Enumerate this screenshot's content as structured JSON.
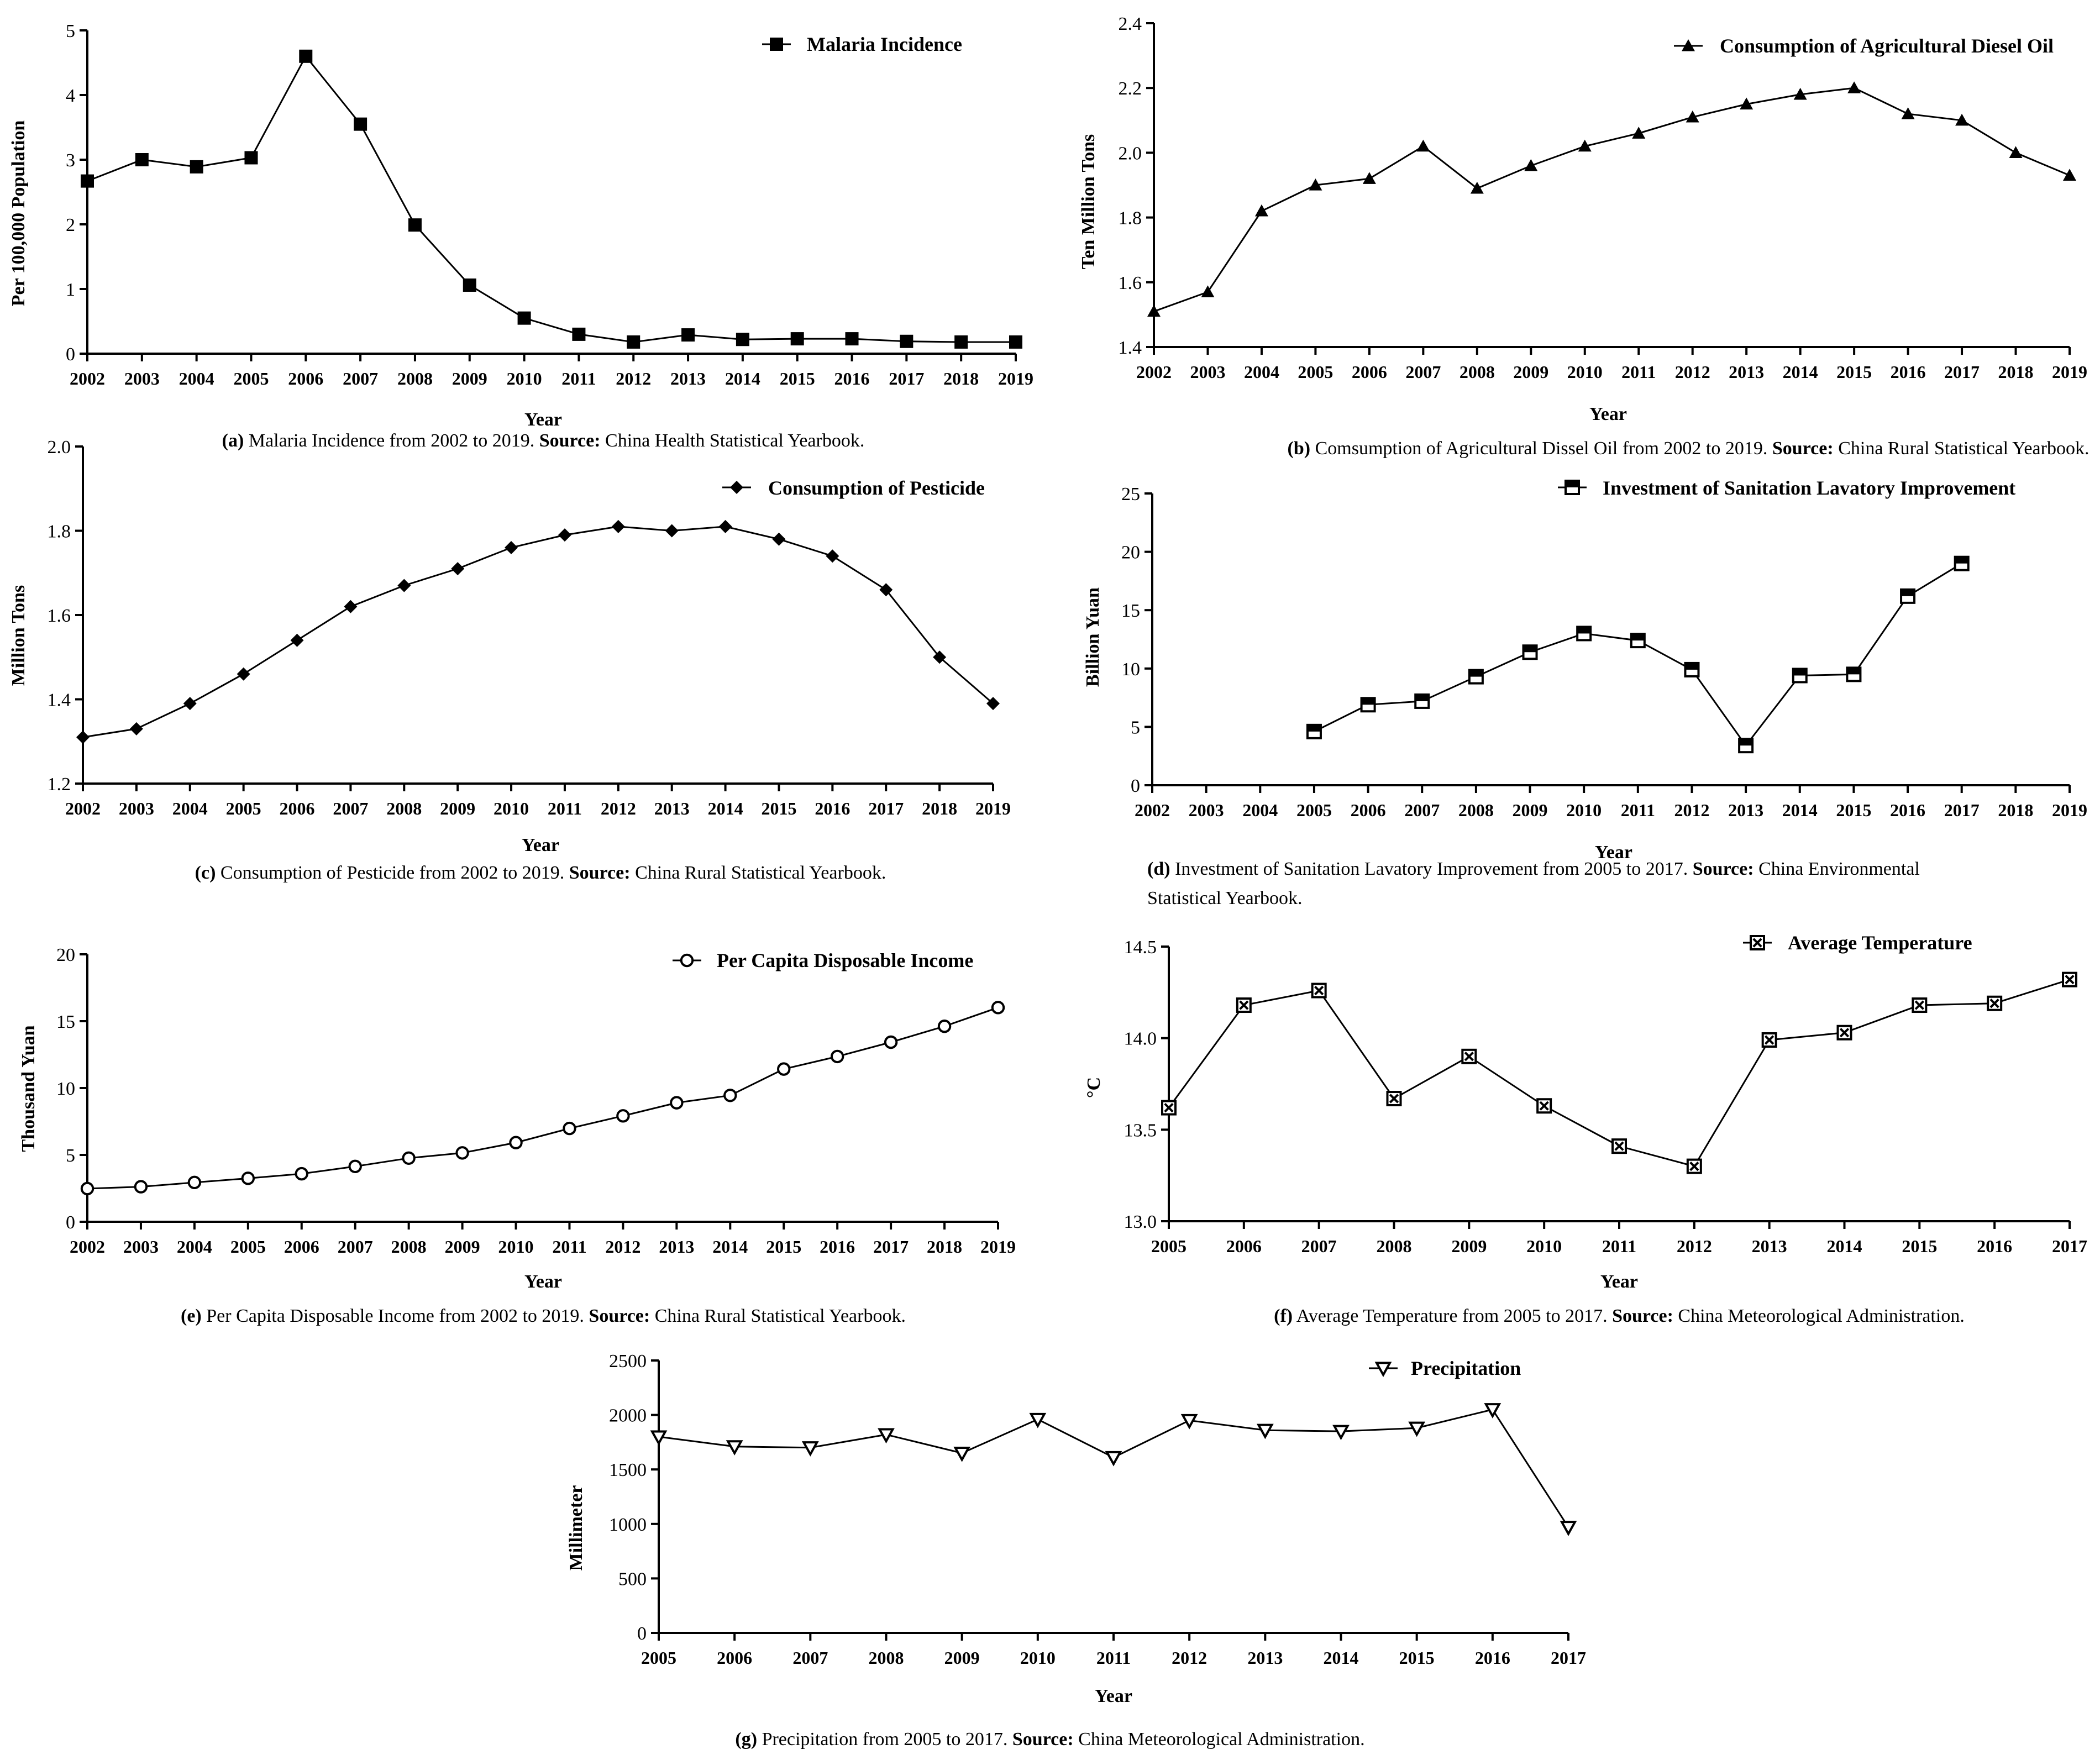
{
  "figure": {
    "panels": [
      {
        "id": "a",
        "letter": "(a)",
        "caption_text": " Malaria Incidence from 2002 to 2019. ",
        "source_label": "Source:",
        "source_text": " China Health Statistical Yearbook."
      },
      {
        "id": "b",
        "letter": "(b)",
        "caption_text": " Comsumption of Agricultural Dissel Oil from 2002 to 2019. ",
        "source_label": "Source:",
        "source_text": " China Rural Statistical Yearbook."
      },
      {
        "id": "c",
        "letter": "(c)",
        "caption_text": " Consumption of Pesticide from 2002 to 2019. ",
        "source_label": "Source:",
        "source_text": " China Rural Statistical Yearbook."
      },
      {
        "id": "d",
        "letter": "(d)",
        "caption_text": " Investment of Sanitation Lavatory Improvement from 2005 to 2017. ",
        "source_label": "Source:",
        "source_text": " China Environmental",
        "caption_line2": "Statistical Yearbook."
      },
      {
        "id": "e",
        "letter": "(e)",
        "caption_text": " Per Capita Disposable Income from 2002 to 2019. ",
        "source_label": "Source:",
        "source_text": " China Rural Statistical Yearbook."
      },
      {
        "id": "f",
        "letter": "(f)",
        "caption_text": " Average Temperature from 2005 to 2017. ",
        "source_label": "Source:",
        "source_text": " China Meteorological Administration."
      },
      {
        "id": "g",
        "letter": "(g)",
        "caption_text": " Precipitation from 2005 to 2017. ",
        "source_label": "Source:",
        "source_text": " China Meteorological Administration."
      }
    ]
  },
  "chart_data": [
    {
      "id": "a",
      "type": "line",
      "marker": "square-filled",
      "title": "",
      "xlabel": "Year",
      "ylabel": "Per 100,000 Population",
      "legend": "Malaria Incidence",
      "legend_position": "top-right",
      "categories": [
        "2002",
        "2003",
        "2004",
        "2005",
        "2006",
        "2007",
        "2008",
        "2009",
        "2010",
        "2011",
        "2012",
        "2013",
        "2014",
        "2015",
        "2016",
        "2017",
        "2018",
        "2019"
      ],
      "values": [
        2.67,
        3.0,
        2.89,
        3.03,
        4.6,
        3.55,
        1.99,
        1.06,
        0.55,
        0.3,
        0.18,
        0.29,
        0.22,
        0.23,
        0.23,
        0.19,
        0.18,
        0.18
      ],
      "ylim": [
        0,
        5
      ],
      "yticks": [
        "0",
        "1",
        "2",
        "3",
        "4",
        "5"
      ]
    },
    {
      "id": "b",
      "type": "line",
      "marker": "triangle-filled",
      "title": "",
      "xlabel": "Year",
      "ylabel": "Ten Million Tons",
      "legend": "Consumption of Agricultural Diesel Oil",
      "legend_position": "top-right",
      "categories": [
        "2002",
        "2003",
        "2004",
        "2005",
        "2006",
        "2007",
        "2008",
        "2009",
        "2010",
        "2011",
        "2012",
        "2013",
        "2014",
        "2015",
        "2016",
        "2017",
        "2018",
        "2019"
      ],
      "values": [
        1.51,
        1.57,
        1.82,
        1.9,
        1.92,
        2.02,
        1.89,
        1.96,
        2.02,
        2.06,
        2.11,
        2.15,
        2.18,
        2.2,
        2.12,
        2.1,
        2.0,
        1.93
      ],
      "ylim": [
        1.4,
        2.4
      ],
      "yticks": [
        "1.4",
        "1.6",
        "1.8",
        "2.0",
        "2.2",
        "2.4"
      ]
    },
    {
      "id": "c",
      "type": "line",
      "marker": "diamond-filled",
      "title": "",
      "xlabel": "Year",
      "ylabel": "Million Tons",
      "legend": "Consumption of Pesticide",
      "legend_position": "top-right",
      "categories": [
        "2002",
        "2003",
        "2004",
        "2005",
        "2006",
        "2007",
        "2008",
        "2009",
        "2010",
        "2011",
        "2012",
        "2013",
        "2014",
        "2015",
        "2016",
        "2017",
        "2018",
        "2019"
      ],
      "values": [
        1.31,
        1.33,
        1.39,
        1.46,
        1.54,
        1.62,
        1.67,
        1.71,
        1.76,
        1.79,
        1.81,
        1.8,
        1.81,
        1.78,
        1.74,
        1.66,
        1.5,
        1.39
      ],
      "ylim": [
        1.2,
        2.0
      ],
      "yticks": [
        "1.2",
        "1.4",
        "1.6",
        "1.8",
        "2.0"
      ]
    },
    {
      "id": "d",
      "type": "line",
      "marker": "square-half",
      "title": "",
      "xlabel": "Year",
      "ylabel": "Billion Yuan",
      "legend": "Investment of Sanitation Lavatory Improvement",
      "legend_position": "top-right",
      "categories": [
        "2002",
        "2003",
        "2004",
        "2005",
        "2006",
        "2007",
        "2008",
        "2009",
        "2010",
        "2011",
        "2012",
        "2013",
        "2014",
        "2015",
        "2016",
        "2017",
        "2018",
        "2019"
      ],
      "values": [
        null,
        null,
        null,
        4.6,
        6.9,
        7.2,
        9.3,
        11.4,
        13.0,
        12.4,
        9.9,
        3.4,
        9.4,
        9.5,
        16.2,
        19.0,
        null,
        null
      ],
      "ylim": [
        0,
        25
      ],
      "yticks": [
        "0",
        "5",
        "10",
        "15",
        "20",
        "25"
      ]
    },
    {
      "id": "e",
      "type": "line",
      "marker": "circle-open",
      "title": "",
      "xlabel": "Year",
      "ylabel": "Thousand Yuan",
      "legend": "Per Capita Disposable Income",
      "legend_position": "top-right",
      "categories": [
        "2002",
        "2003",
        "2004",
        "2005",
        "2006",
        "2007",
        "2008",
        "2009",
        "2010",
        "2011",
        "2012",
        "2013",
        "2014",
        "2015",
        "2016",
        "2017",
        "2018",
        "2019"
      ],
      "values": [
        2.48,
        2.62,
        2.94,
        3.25,
        3.59,
        4.14,
        4.76,
        5.15,
        5.92,
        6.98,
        7.92,
        8.9,
        9.45,
        11.42,
        12.36,
        13.43,
        14.62,
        16.02
      ],
      "ylim": [
        0,
        20
      ],
      "yticks": [
        "0",
        "5",
        "10",
        "15",
        "20"
      ]
    },
    {
      "id": "f",
      "type": "line",
      "marker": "square-x",
      "title": "",
      "xlabel": "Year",
      "ylabel": "°C",
      "legend": "Average Temperature",
      "legend_position": "top-right",
      "categories": [
        "2005",
        "2006",
        "2007",
        "2008",
        "2009",
        "2010",
        "2011",
        "2012",
        "2013",
        "2014",
        "2015",
        "2016",
        "2017"
      ],
      "values": [
        13.62,
        14.18,
        14.26,
        13.67,
        13.9,
        13.63,
        13.41,
        13.3,
        13.99,
        14.03,
        14.18,
        14.19,
        14.32
      ],
      "ylim": [
        13.0,
        14.5
      ],
      "yticks": [
        "13.0",
        "13.5",
        "14.0",
        "14.5"
      ]
    },
    {
      "id": "g",
      "type": "line",
      "marker": "triangle-down-open",
      "title": "",
      "xlabel": "Year",
      "ylabel": "Millimeter",
      "legend": "Precipitation",
      "legend_position": "top-right",
      "categories": [
        "2005",
        "2006",
        "2007",
        "2008",
        "2009",
        "2010",
        "2011",
        "2012",
        "2013",
        "2014",
        "2015",
        "2016",
        "2017"
      ],
      "values": [
        1800,
        1710,
        1700,
        1820,
        1650,
        1960,
        1610,
        1950,
        1860,
        1850,
        1880,
        2050,
        970
      ],
      "ylim": [
        0,
        2500
      ],
      "yticks": [
        "0",
        "500",
        "1000",
        "1500",
        "2000",
        "2500"
      ]
    }
  ]
}
